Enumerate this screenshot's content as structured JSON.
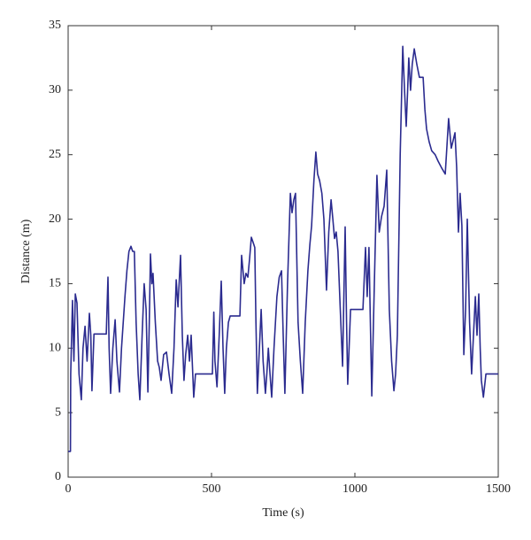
{
  "chart_data": {
    "type": "line",
    "xlabel": "Time (s)",
    "ylabel": "Distance (m)",
    "xlim": [
      0,
      1500
    ],
    "ylim": [
      0,
      35
    ],
    "xticks": [
      0,
      500,
      1000,
      1500
    ],
    "yticks": [
      0,
      5,
      10,
      15,
      20,
      25,
      30,
      35
    ],
    "series": [
      {
        "color": "#2b2b8f",
        "x": [
          0,
          8,
          9,
          15,
          20,
          25,
          31,
          38,
          46,
          52,
          59,
          66,
          74,
          79,
          83,
          90,
          133,
          139,
          143,
          148,
          156,
          164,
          170,
          179,
          186,
          198,
          205,
          212,
          219,
          225,
          231,
          237,
          244,
          250,
          258,
          265,
          272,
          278,
          283,
          287,
          292,
          296,
          304,
          312,
          318,
          324,
          333,
          343,
          352,
          361,
          369,
          377,
          383,
          392,
          398,
          404,
          410,
          417,
          423,
          429,
          438,
          444,
          503,
          508,
          512,
          519,
          527,
          534,
          540,
          546,
          552,
          559,
          565,
          599,
          605,
          614,
          620,
          627,
          633,
          639,
          645,
          651,
          655,
          660,
          667,
          673,
          680,
          688,
          693,
          698,
          704,
          710,
          718,
          728,
          736,
          744,
          750,
          756,
          765,
          775,
          781,
          787,
          793,
          802,
          810,
          818,
          827,
          836,
          843,
          849,
          857,
          864,
          870,
          877,
          885,
          892,
          897,
          901,
          909,
          917,
          923,
          929,
          935,
          941,
          949,
          957,
          966,
          971,
          975,
          985,
          1028,
          1037,
          1043,
          1049,
          1054,
          1059,
          1068,
          1077,
          1085,
          1093,
          1102,
          1111,
          1120,
          1128,
          1136,
          1142,
          1148,
          1158,
          1167,
          1173,
          1179,
          1184,
          1188,
          1194,
          1200,
          1207,
          1216,
          1225,
          1238,
          1244,
          1250,
          1259,
          1268,
          1280,
          1290,
          1302,
          1315,
          1327,
          1336,
          1349,
          1355,
          1361,
          1367,
          1373,
          1380,
          1386,
          1392,
          1400,
          1407,
          1420,
          1426,
          1432,
          1437,
          1441,
          1448,
          1457,
          1500
        ],
        "values": [
          2,
          2,
          8,
          13.7,
          9,
          14.2,
          13.5,
          8,
          6,
          10,
          11.7,
          9,
          12.7,
          11,
          6.7,
          11.1,
          11.1,
          15.5,
          10,
          6.5,
          10,
          12.2,
          9,
          6.6,
          10,
          14,
          16,
          17.5,
          17.9,
          17.5,
          17.5,
          12,
          8,
          6,
          11,
          15,
          13,
          6.6,
          12,
          17.3,
          15,
          15.8,
          12,
          9,
          8.5,
          7.5,
          9.5,
          9.7,
          8,
          6.5,
          10,
          15.3,
          13.2,
          17.2,
          11,
          7.5,
          9.5,
          11,
          9,
          11,
          6.2,
          8,
          8,
          12.8,
          9,
          7,
          11,
          15.2,
          10,
          6.5,
          10,
          12,
          12.5,
          12.5,
          17.2,
          15,
          15.8,
          15.5,
          17,
          18.6,
          18.2,
          17.8,
          12,
          6.5,
          10,
          13,
          9,
          6.5,
          8,
          10,
          8,
          6.2,
          10,
          14,
          15.5,
          16,
          11,
          6.5,
          15,
          22,
          20.5,
          21.5,
          22,
          12,
          9,
          6.5,
          12,
          16,
          18,
          19.5,
          23,
          25.2,
          23.5,
          23,
          22,
          20,
          17,
          14.5,
          19,
          21.5,
          20,
          18.5,
          19,
          17.5,
          13,
          8.6,
          19.4,
          12,
          7.2,
          13,
          13,
          17.8,
          14,
          17.8,
          12,
          6.3,
          15,
          23.4,
          19,
          20.2,
          21,
          23.8,
          13,
          9,
          6.7,
          8,
          11,
          25,
          33.4,
          30,
          27.2,
          30,
          32.5,
          30,
          32,
          33.2,
          32,
          31,
          31,
          28.5,
          27,
          26,
          25.3,
          25,
          24.5,
          24,
          23.5,
          27.8,
          25.5,
          26.7,
          24,
          19,
          22,
          19.5,
          9.5,
          13,
          20,
          12,
          8,
          14,
          11,
          14.2,
          10,
          7.5,
          6.2,
          8,
          8
        ]
      }
    ]
  }
}
